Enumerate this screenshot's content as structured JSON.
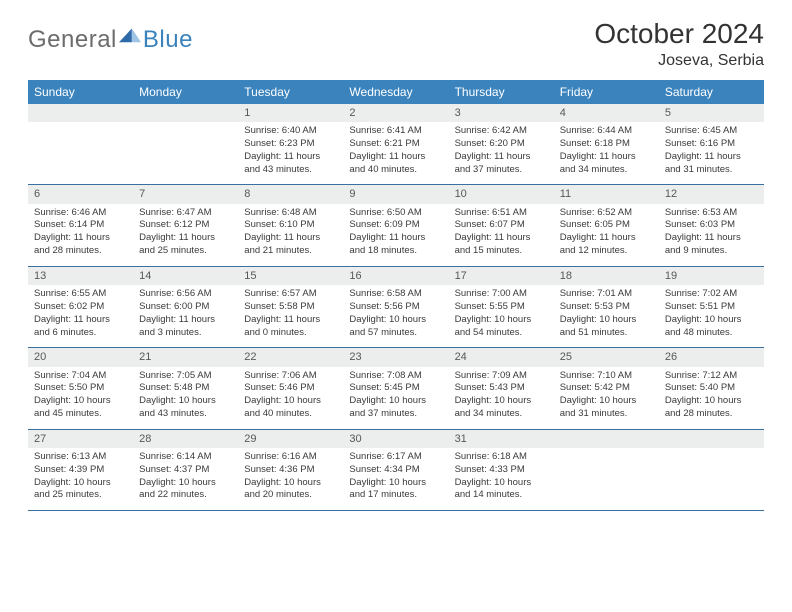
{
  "brand": {
    "part1": "General",
    "part2": "Blue"
  },
  "title": "October 2024",
  "location": "Joseva, Serbia",
  "colors": {
    "header_bar": "#3b83bd",
    "header_text": "#ffffff",
    "daynum_band_bg": "#eceded",
    "daynum_text": "#57585a",
    "body_text": "#3a3a3a",
    "week_divider": "#3b6fa0",
    "logo_gray": "#6c6c6c",
    "logo_blue": "#3b83bd",
    "title_color": "#333333"
  },
  "dow": [
    "Sunday",
    "Monday",
    "Tuesday",
    "Wednesday",
    "Thursday",
    "Friday",
    "Saturday"
  ],
  "weeks": [
    [
      null,
      null,
      {
        "n": "1",
        "sr": "Sunrise: 6:40 AM",
        "ss": "Sunset: 6:23 PM",
        "dl": "Daylight: 11 hours and 43 minutes."
      },
      {
        "n": "2",
        "sr": "Sunrise: 6:41 AM",
        "ss": "Sunset: 6:21 PM",
        "dl": "Daylight: 11 hours and 40 minutes."
      },
      {
        "n": "3",
        "sr": "Sunrise: 6:42 AM",
        "ss": "Sunset: 6:20 PM",
        "dl": "Daylight: 11 hours and 37 minutes."
      },
      {
        "n": "4",
        "sr": "Sunrise: 6:44 AM",
        "ss": "Sunset: 6:18 PM",
        "dl": "Daylight: 11 hours and 34 minutes."
      },
      {
        "n": "5",
        "sr": "Sunrise: 6:45 AM",
        "ss": "Sunset: 6:16 PM",
        "dl": "Daylight: 11 hours and 31 minutes."
      }
    ],
    [
      {
        "n": "6",
        "sr": "Sunrise: 6:46 AM",
        "ss": "Sunset: 6:14 PM",
        "dl": "Daylight: 11 hours and 28 minutes."
      },
      {
        "n": "7",
        "sr": "Sunrise: 6:47 AM",
        "ss": "Sunset: 6:12 PM",
        "dl": "Daylight: 11 hours and 25 minutes."
      },
      {
        "n": "8",
        "sr": "Sunrise: 6:48 AM",
        "ss": "Sunset: 6:10 PM",
        "dl": "Daylight: 11 hours and 21 minutes."
      },
      {
        "n": "9",
        "sr": "Sunrise: 6:50 AM",
        "ss": "Sunset: 6:09 PM",
        "dl": "Daylight: 11 hours and 18 minutes."
      },
      {
        "n": "10",
        "sr": "Sunrise: 6:51 AM",
        "ss": "Sunset: 6:07 PM",
        "dl": "Daylight: 11 hours and 15 minutes."
      },
      {
        "n": "11",
        "sr": "Sunrise: 6:52 AM",
        "ss": "Sunset: 6:05 PM",
        "dl": "Daylight: 11 hours and 12 minutes."
      },
      {
        "n": "12",
        "sr": "Sunrise: 6:53 AM",
        "ss": "Sunset: 6:03 PM",
        "dl": "Daylight: 11 hours and 9 minutes."
      }
    ],
    [
      {
        "n": "13",
        "sr": "Sunrise: 6:55 AM",
        "ss": "Sunset: 6:02 PM",
        "dl": "Daylight: 11 hours and 6 minutes."
      },
      {
        "n": "14",
        "sr": "Sunrise: 6:56 AM",
        "ss": "Sunset: 6:00 PM",
        "dl": "Daylight: 11 hours and 3 minutes."
      },
      {
        "n": "15",
        "sr": "Sunrise: 6:57 AM",
        "ss": "Sunset: 5:58 PM",
        "dl": "Daylight: 11 hours and 0 minutes."
      },
      {
        "n": "16",
        "sr": "Sunrise: 6:58 AM",
        "ss": "Sunset: 5:56 PM",
        "dl": "Daylight: 10 hours and 57 minutes."
      },
      {
        "n": "17",
        "sr": "Sunrise: 7:00 AM",
        "ss": "Sunset: 5:55 PM",
        "dl": "Daylight: 10 hours and 54 minutes."
      },
      {
        "n": "18",
        "sr": "Sunrise: 7:01 AM",
        "ss": "Sunset: 5:53 PM",
        "dl": "Daylight: 10 hours and 51 minutes."
      },
      {
        "n": "19",
        "sr": "Sunrise: 7:02 AM",
        "ss": "Sunset: 5:51 PM",
        "dl": "Daylight: 10 hours and 48 minutes."
      }
    ],
    [
      {
        "n": "20",
        "sr": "Sunrise: 7:04 AM",
        "ss": "Sunset: 5:50 PM",
        "dl": "Daylight: 10 hours and 45 minutes."
      },
      {
        "n": "21",
        "sr": "Sunrise: 7:05 AM",
        "ss": "Sunset: 5:48 PM",
        "dl": "Daylight: 10 hours and 43 minutes."
      },
      {
        "n": "22",
        "sr": "Sunrise: 7:06 AM",
        "ss": "Sunset: 5:46 PM",
        "dl": "Daylight: 10 hours and 40 minutes."
      },
      {
        "n": "23",
        "sr": "Sunrise: 7:08 AM",
        "ss": "Sunset: 5:45 PM",
        "dl": "Daylight: 10 hours and 37 minutes."
      },
      {
        "n": "24",
        "sr": "Sunrise: 7:09 AM",
        "ss": "Sunset: 5:43 PM",
        "dl": "Daylight: 10 hours and 34 minutes."
      },
      {
        "n": "25",
        "sr": "Sunrise: 7:10 AM",
        "ss": "Sunset: 5:42 PM",
        "dl": "Daylight: 10 hours and 31 minutes."
      },
      {
        "n": "26",
        "sr": "Sunrise: 7:12 AM",
        "ss": "Sunset: 5:40 PM",
        "dl": "Daylight: 10 hours and 28 minutes."
      }
    ],
    [
      {
        "n": "27",
        "sr": "Sunrise: 6:13 AM",
        "ss": "Sunset: 4:39 PM",
        "dl": "Daylight: 10 hours and 25 minutes."
      },
      {
        "n": "28",
        "sr": "Sunrise: 6:14 AM",
        "ss": "Sunset: 4:37 PM",
        "dl": "Daylight: 10 hours and 22 minutes."
      },
      {
        "n": "29",
        "sr": "Sunrise: 6:16 AM",
        "ss": "Sunset: 4:36 PM",
        "dl": "Daylight: 10 hours and 20 minutes."
      },
      {
        "n": "30",
        "sr": "Sunrise: 6:17 AM",
        "ss": "Sunset: 4:34 PM",
        "dl": "Daylight: 10 hours and 17 minutes."
      },
      {
        "n": "31",
        "sr": "Sunrise: 6:18 AM",
        "ss": "Sunset: 4:33 PM",
        "dl": "Daylight: 10 hours and 14 minutes."
      },
      null,
      null
    ]
  ]
}
